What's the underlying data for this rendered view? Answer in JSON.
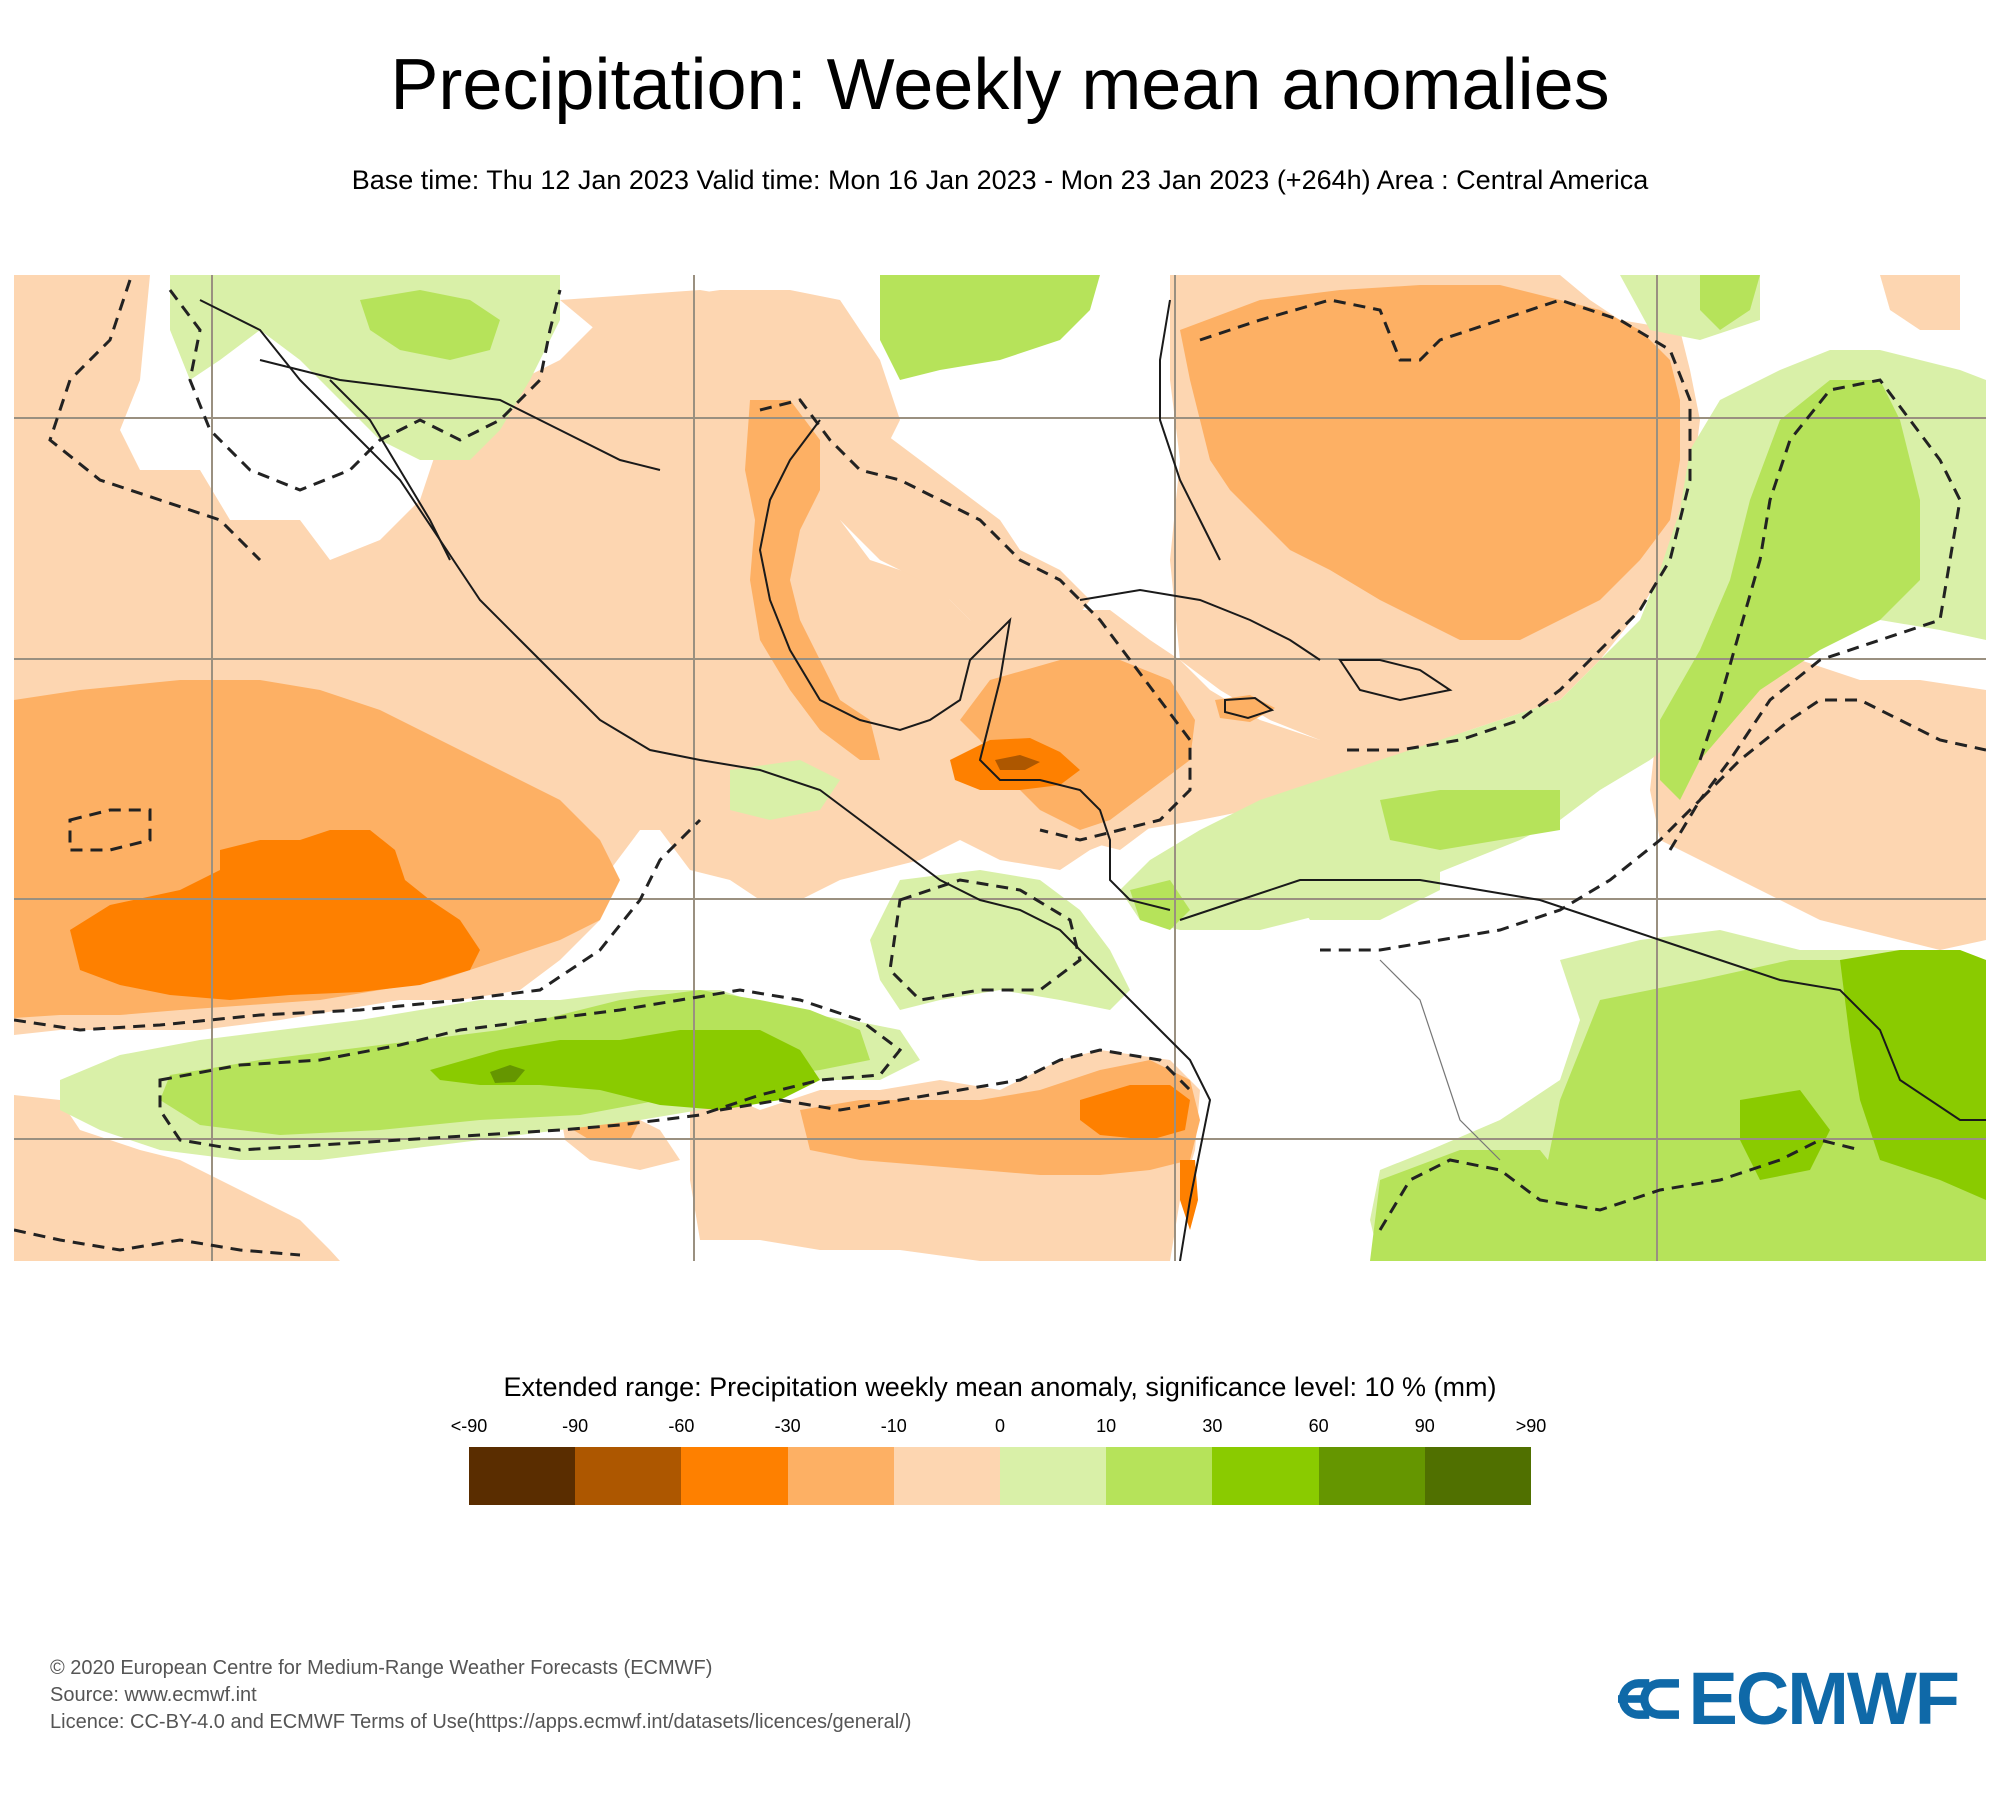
{
  "header": {
    "title": "Precipitation: Weekly mean anomalies",
    "subtitle": "Base time: Thu 12 Jan 2023 Valid time: Mon 16 Jan 2023 - Mon 23 Jan 2023 (+264h) Area : Central America"
  },
  "map": {
    "area": "Central America",
    "variable": "Precipitation weekly mean anomaly",
    "units": "mm",
    "significance_contour": "dashed",
    "gridline_color": "#9a9080",
    "coastline_color": "#1a1a1a"
  },
  "legend": {
    "title": "Extended range: Precipitation weekly mean anomaly, significance level: 10 % (mm)",
    "labels": [
      "<-90",
      "-90",
      "-60",
      "-30",
      "-10",
      "0",
      "10",
      "30",
      "60",
      "90",
      ">90"
    ],
    "bins": [
      {
        "range": "<-90",
        "color": "#5a2d00"
      },
      {
        "range": "-90 to -60",
        "color": "#ad5700"
      },
      {
        "range": "-60 to -30",
        "color": "#fe8000"
      },
      {
        "range": "-30 to -10",
        "color": "#fdb064"
      },
      {
        "range": "-10 to 0",
        "color": "#fdd6b1"
      },
      {
        "range": "0 to 10",
        "color": "#d9f0a8"
      },
      {
        "range": "10 to 30",
        "color": "#b6e35a"
      },
      {
        "range": "30 to 60",
        "color": "#8acb00"
      },
      {
        "range": "60 to 90",
        "color": "#659600"
      },
      {
        "range": ">90",
        "color": "#507000"
      }
    ]
  },
  "footer": {
    "copyright": "© 2020 European Centre for Medium-Range Weather Forecasts (ECMWF)",
    "source": "Source: www.ecmwf.int",
    "licence": "Licence: CC-BY-4.0 and ECMWF Terms of Use(https://apps.ecmwf.int/datasets/licences/general/)"
  },
  "logo": {
    "text": "ECMWF",
    "color": "#0f69a8"
  }
}
